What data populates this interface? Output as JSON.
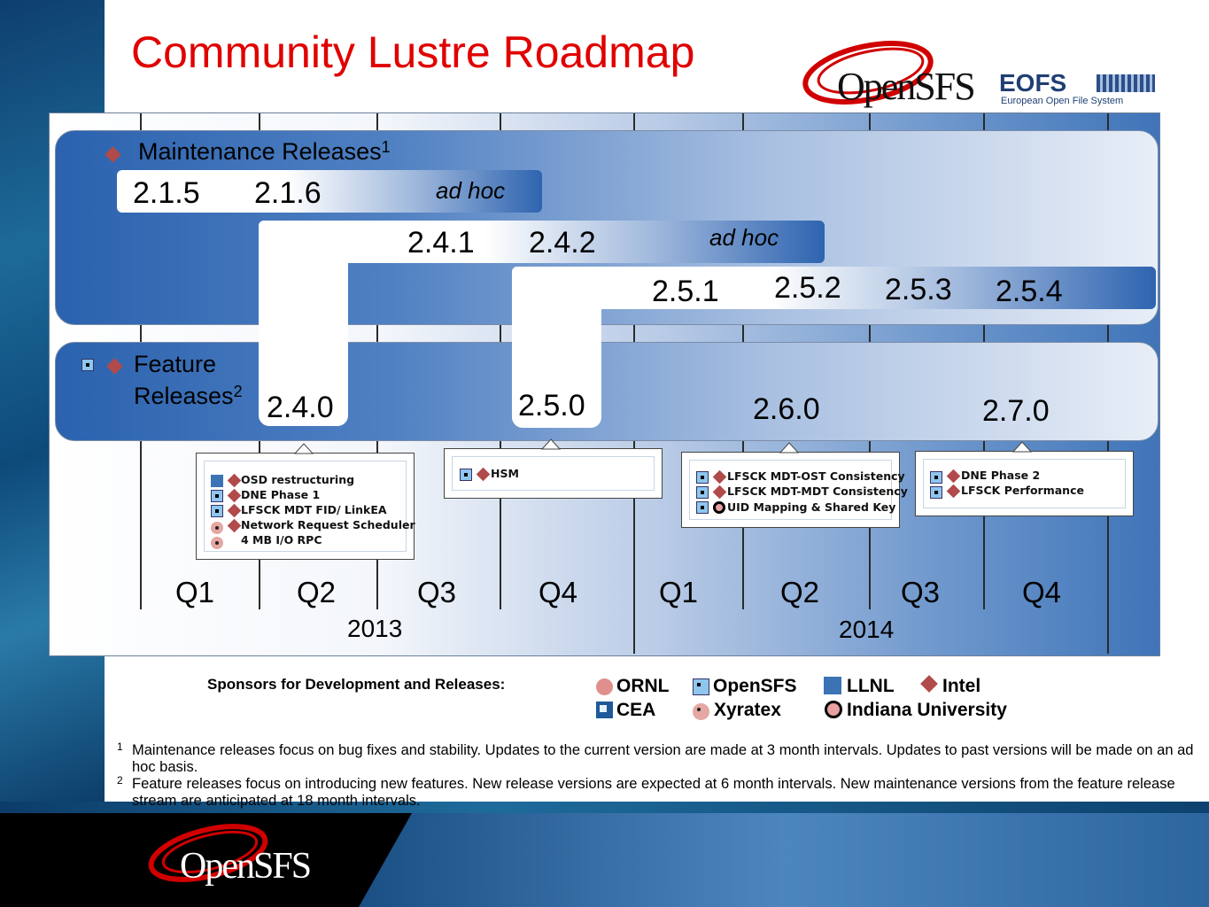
{
  "slide": {
    "title": "Community Lustre Roadmap"
  },
  "logos": {
    "opensfs": "OpenSFS",
    "eofs_name": "EOFS",
    "eofs_subtitle": "European Open File System",
    "footer_logo": "OpenSFS"
  },
  "panels": {
    "maintenance": {
      "label": "Maintenance Releases",
      "footnote_mark": "1"
    },
    "feature": {
      "label_line1": "Feature",
      "label_line2": "Releases",
      "footnote_mark": "2"
    }
  },
  "maintenance_releases": {
    "stream_2_1": [
      "2.1.5",
      "2.1.6"
    ],
    "stream_2_1_adhoc": "ad hoc",
    "stream_2_4": [
      "2.4.1",
      "2.4.2"
    ],
    "stream_2_4_adhoc": "ad hoc",
    "stream_2_5": [
      "2.5.1",
      "2.5.2",
      "2.5.3",
      "2.5.4"
    ]
  },
  "feature_releases": [
    "2.4.0",
    "2.5.0",
    "2.6.0",
    "2.7.0"
  ],
  "callouts": {
    "r240": [
      "OSD restructuring",
      "DNE Phase 1",
      "LFSCK MDT FID/ LinkEA",
      "Network Request Scheduler",
      "4 MB I/O RPC"
    ],
    "r250": [
      "HSM"
    ],
    "r260": [
      "LFSCK MDT-OST Consistency",
      "LFSCK MDT-MDT Consistency",
      "UID Mapping & Shared Key"
    ],
    "r270": [
      "DNE Phase 2",
      "LFSCK Performance"
    ]
  },
  "timeline": {
    "quarters": [
      "Q1",
      "Q2",
      "Q3",
      "Q4",
      "Q1",
      "Q2",
      "Q3",
      "Q4"
    ],
    "years": [
      "2013",
      "2014"
    ]
  },
  "legend": {
    "title": "Sponsors for Development and Releases:",
    "sponsors": {
      "ornl": "ORNL",
      "opensfs": "OpenSFS",
      "llnl": "LLNL",
      "intel": "Intel",
      "cea": "CEA",
      "xyratex": "Xyratex",
      "indiana": "Indiana University"
    }
  },
  "notes": {
    "n1_mark": "1",
    "n1": "Maintenance releases focus on bug fixes and stability.  Updates to the current version are made at 3 month intervals. Updates to past versions will be made on an ad hoc basis.",
    "n2_mark": "2",
    "n2": "Feature releases focus on introducing new features.  New release versions are expected at 6 month intervals.  New maintenance versions from the feature release stream are anticipated at 18 month intervals."
  },
  "colors": {
    "title_red": "#e00000",
    "panel_blue": "#2b62ae",
    "intel_red": "#b14a4a",
    "opensfs_blue": "#8fc6ee"
  }
}
